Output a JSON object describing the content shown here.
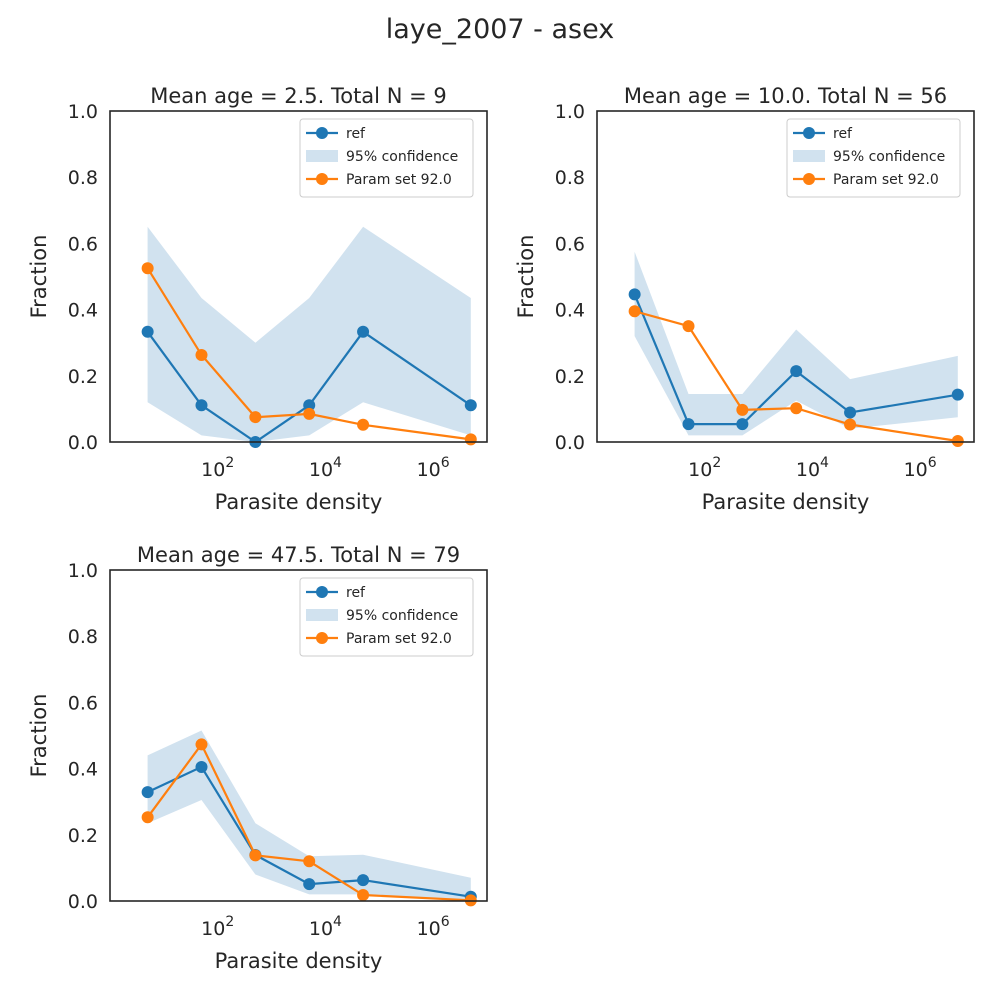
{
  "figure": {
    "suptitle": "laye_2007 - asex",
    "colors": {
      "ref": "#1f77b4",
      "param": "#ff7f0e",
      "band": "#d1e2ef",
      "axes": "#262626"
    }
  },
  "chart_data": [
    {
      "type": "line",
      "title": "Mean age = 2.5.  Total N = 9",
      "xlabel": "Parasite density",
      "ylabel": "Fraction",
      "xscale": "log",
      "xlim": [
        1,
        10000000
      ],
      "ylim": [
        0,
        1
      ],
      "yticks": [
        "0.0",
        "0.2",
        "0.4",
        "0.6",
        "0.8",
        "1.0"
      ],
      "xticks": [
        {
          "base": "10",
          "exp": "2",
          "value": 100
        },
        {
          "base": "10",
          "exp": "4",
          "value": 10000
        },
        {
          "base": "10",
          "exp": "6",
          "value": 1000000
        }
      ],
      "x": [
        5,
        50,
        500,
        5000,
        50000,
        5000000
      ],
      "legend": {
        "placement": "upper right",
        "entries": [
          "ref",
          "95% confidence",
          "Param set 92.0"
        ]
      },
      "series": [
        {
          "name": "ref",
          "values": [
            0.333,
            0.111,
            0.0,
            0.111,
            0.333,
            0.111
          ]
        },
        {
          "name": "95% confidence",
          "lower": [
            0.12,
            0.02,
            0.0,
            0.02,
            0.12,
            0.02
          ],
          "upper": [
            0.65,
            0.435,
            0.3,
            0.435,
            0.65,
            0.435
          ]
        },
        {
          "name": "Param set 92.0",
          "values": [
            0.525,
            0.263,
            0.075,
            0.085,
            0.052,
            0.008
          ]
        }
      ]
    },
    {
      "type": "line",
      "title": "Mean age = 10.0.  Total N = 56",
      "xlabel": "Parasite density",
      "ylabel": "Fraction",
      "xscale": "log",
      "xlim": [
        1,
        10000000
      ],
      "ylim": [
        0,
        1
      ],
      "yticks": [
        "0.0",
        "0.2",
        "0.4",
        "0.6",
        "0.8",
        "1.0"
      ],
      "xticks": [
        {
          "base": "10",
          "exp": "2",
          "value": 100
        },
        {
          "base": "10",
          "exp": "4",
          "value": 10000
        },
        {
          "base": "10",
          "exp": "6",
          "value": 1000000
        }
      ],
      "x": [
        5,
        50,
        500,
        5000,
        50000,
        5000000
      ],
      "legend": {
        "placement": "upper right",
        "entries": [
          "ref",
          "95% confidence",
          "Param set 92.0"
        ]
      },
      "series": [
        {
          "name": "ref",
          "values": [
            0.446,
            0.054,
            0.054,
            0.214,
            0.089,
            0.143
          ]
        },
        {
          "name": "95% confidence",
          "lower": [
            0.32,
            0.02,
            0.02,
            0.125,
            0.04,
            0.075
          ],
          "upper": [
            0.575,
            0.145,
            0.145,
            0.34,
            0.19,
            0.26
          ]
        },
        {
          "name": "Param set 92.0",
          "values": [
            0.395,
            0.35,
            0.097,
            0.102,
            0.053,
            0.003
          ]
        }
      ]
    },
    {
      "type": "line",
      "title": "Mean age = 47.5.  Total N = 79",
      "xlabel": "Parasite density",
      "ylabel": "Fraction",
      "xscale": "log",
      "xlim": [
        1,
        10000000
      ],
      "ylim": [
        0,
        1
      ],
      "yticks": [
        "0.0",
        "0.2",
        "0.4",
        "0.6",
        "0.8",
        "1.0"
      ],
      "xticks": [
        {
          "base": "10",
          "exp": "2",
          "value": 100
        },
        {
          "base": "10",
          "exp": "4",
          "value": 10000
        },
        {
          "base": "10",
          "exp": "6",
          "value": 1000000
        }
      ],
      "x": [
        5,
        50,
        500,
        5000,
        50000,
        5000000
      ],
      "legend": {
        "placement": "upper right",
        "entries": [
          "ref",
          "95% confidence",
          "Param set 92.0"
        ]
      },
      "series": [
        {
          "name": "ref",
          "values": [
            0.329,
            0.405,
            0.139,
            0.051,
            0.063,
            0.013
          ]
        },
        {
          "name": "95% confidence",
          "lower": [
            0.235,
            0.305,
            0.08,
            0.02,
            0.02,
            0.0
          ],
          "upper": [
            0.44,
            0.515,
            0.235,
            0.135,
            0.14,
            0.07
          ]
        },
        {
          "name": "Param set 92.0",
          "values": [
            0.253,
            0.473,
            0.138,
            0.12,
            0.018,
            0.002
          ]
        }
      ]
    }
  ]
}
